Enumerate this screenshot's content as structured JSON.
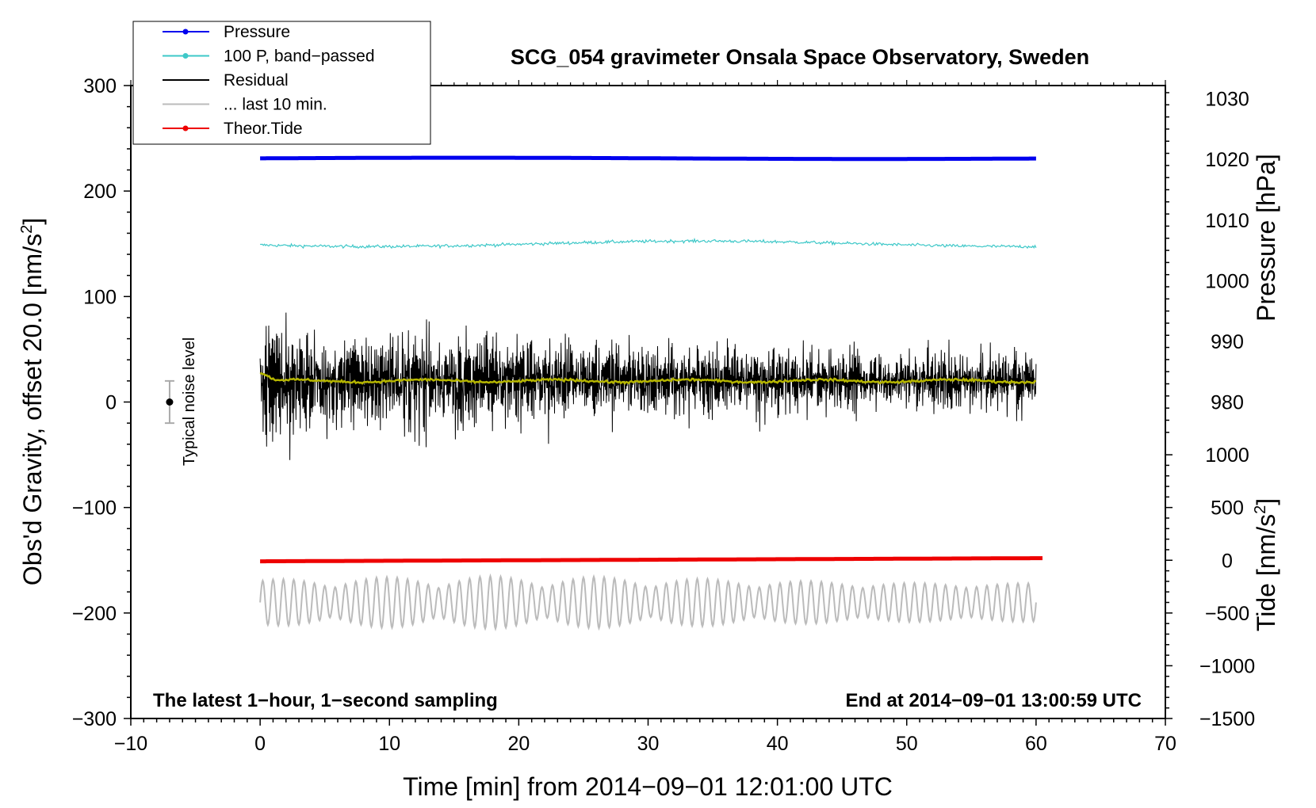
{
  "chart_data": {
    "type": "line",
    "title": "SCG_054 gravimeter Onsala Space Observatory, Sweden",
    "xlabel": "Time [min] from 2014−09−01 12:01:00 UTC",
    "ylabel_left": "Obs'd Gravity, offset 20.0 [nm/s²]",
    "ylabel_left_main": "Obs'd Gravity, offset 20.0 [nm/s",
    "ylabel_left_sup": "2",
    "ylabel_left_end": "]",
    "ylabel_right_pressure": "Pressure [hPa]",
    "ylabel_right_tide": "Tide [nm/s²]",
    "ylabel_right_tide_main": "Tide [nm/s",
    "ylabel_right_tide_sup": "2",
    "ylabel_right_tide_end": "]",
    "xlim": [
      -10,
      70
    ],
    "ylim": [
      -300,
      300
    ],
    "x_ticks": [
      {
        "value": -10,
        "label": "−10"
      },
      {
        "value": 0,
        "label": "0"
      },
      {
        "value": 10,
        "label": "10"
      },
      {
        "value": 20,
        "label": "20"
      },
      {
        "value": 30,
        "label": "30"
      },
      {
        "value": 40,
        "label": "40"
      },
      {
        "value": 50,
        "label": "50"
      },
      {
        "value": 60,
        "label": "60"
      },
      {
        "value": 70,
        "label": "70"
      }
    ],
    "y_ticks": [
      {
        "value": 300,
        "label": "300"
      },
      {
        "value": 200,
        "label": "200"
      },
      {
        "value": 100,
        "label": "100"
      },
      {
        "value": 0,
        "label": "0"
      },
      {
        "value": -100,
        "label": "−100"
      },
      {
        "value": -200,
        "label": "−200"
      },
      {
        "value": -300,
        "label": "−300"
      }
    ],
    "pressure_axis": {
      "scale": [
        {
          "gravity": 230,
          "value": 1020
        },
        {
          "gravity": 0,
          "value": 980
        }
      ],
      "ticks": [
        {
          "value": 1030,
          "label": "1030"
        },
        {
          "value": 1020,
          "label": "1020"
        },
        {
          "value": 1010,
          "label": "1010"
        },
        {
          "value": 1000,
          "label": "1000"
        },
        {
          "value": 990,
          "label": "990"
        },
        {
          "value": 980,
          "label": "980"
        }
      ]
    },
    "tide_axis": {
      "scale": [
        {
          "gravity": -150,
          "value": 0
        },
        {
          "gravity": -200,
          "value": -500
        }
      ],
      "ticks": [
        {
          "value": 1000,
          "label": "1000"
        },
        {
          "value": 500,
          "label": "500"
        },
        {
          "value": 0,
          "label": "0"
        },
        {
          "value": -500,
          "label": "−500"
        },
        {
          "value": -1000,
          "label": "−1000"
        },
        {
          "value": -1500,
          "label": "−1500"
        }
      ]
    },
    "series": [
      {
        "name": "Pressure",
        "color": "#0000ee",
        "x_range": [
          0,
          60
        ],
        "approx_y": 231,
        "style": "thick-dots"
      },
      {
        "name": "100 P, band−passed",
        "color": "#3ec8c8",
        "x_range": [
          0,
          60
        ],
        "approx_y": 150,
        "amplitude": 3,
        "style": "thin-noisy"
      },
      {
        "name": "Residual",
        "color": "#000000",
        "x_range": [
          0,
          60
        ],
        "approx_y": 20,
        "amplitude_start": 80,
        "amplitude_end": 30,
        "style": "noisy"
      },
      {
        "name": "... last 10 min.",
        "color": "#bbbbbb",
        "x_range": [
          0,
          60
        ],
        "approx_y": -190,
        "amplitude": 25,
        "style": "oscillating"
      },
      {
        "name": "Theor.Tide",
        "color": "#ee0000",
        "x_range": [
          0,
          60.5
        ],
        "y_start": -151,
        "y_end": -148,
        "style": "thick-dots"
      }
    ],
    "smoothed_residual": {
      "color": "#b5b500",
      "approx_y": 20
    },
    "noise_level": {
      "label": "Typical noise level",
      "x": -7,
      "center": 0,
      "low": -20,
      "high": 20
    },
    "annotations": {
      "left": "The latest 1−hour, 1−second sampling",
      "right": "End at 2014−09−01 13:00:59 UTC"
    },
    "legend": {
      "placement": "top-left",
      "entries": [
        {
          "label": "Pressure",
          "color": "#0000ee",
          "marker": "dot"
        },
        {
          "label": "100 P, band−passed",
          "color": "#3ec8c8",
          "marker": "dot"
        },
        {
          "label": "Residual",
          "color": "#000000",
          "marker": "none"
        },
        {
          "label": "... last 10 min.",
          "color": "#bbbbbb",
          "marker": "none"
        },
        {
          "label": "Theor.Tide",
          "color": "#ee0000",
          "marker": "dot"
        }
      ]
    }
  }
}
